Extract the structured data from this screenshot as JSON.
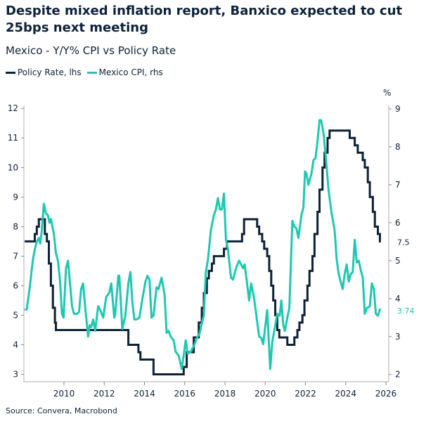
{
  "chart_data": {
    "type": "line",
    "title": "Despite mixed inflation report, Banxico expected to cut 25bps next meeting",
    "subtitle": "Mexico - Y/Y% CPI vs Policy Rate",
    "right_axis_unit": "%",
    "source": "Source: Convera, Macrobond",
    "legend_position": "top-left",
    "grid": false,
    "xlim": [
      2008.0,
      2026.0
    ],
    "x_ticks": [
      "2010",
      "2012",
      "2014",
      "2016",
      "2018",
      "2020",
      "2022",
      "2024",
      "2026"
    ],
    "left_axis": {
      "ylim": [
        2.75,
        12.1
      ],
      "ticks": [
        "3",
        "4",
        "5",
        "6",
        "7",
        "8",
        "9",
        "10",
        "11",
        "12"
      ]
    },
    "right_axis": {
      "ylim": [
        1.81,
        9.09
      ],
      "ticks": [
        "2",
        "3",
        "4",
        "5",
        "6",
        "7",
        "8",
        "9"
      ]
    },
    "series": [
      {
        "name": "Policy Rate, lhs",
        "axis": "left",
        "color": "#0d2137",
        "step": true,
        "last_value_label": "7.5",
        "points": [
          [
            2008.05,
            7.5
          ],
          [
            2008.55,
            7.75
          ],
          [
            2008.65,
            8.0
          ],
          [
            2008.75,
            8.25
          ],
          [
            2009.05,
            7.75
          ],
          [
            2009.15,
            7.5
          ],
          [
            2009.25,
            6.75
          ],
          [
            2009.35,
            6.0
          ],
          [
            2009.45,
            5.25
          ],
          [
            2009.55,
            4.75
          ],
          [
            2009.6,
            4.5
          ],
          [
            2013.2,
            4.0
          ],
          [
            2013.7,
            3.75
          ],
          [
            2013.8,
            3.5
          ],
          [
            2014.45,
            3.0
          ],
          [
            2015.95,
            3.25
          ],
          [
            2016.1,
            3.75
          ],
          [
            2016.45,
            4.25
          ],
          [
            2016.7,
            4.75
          ],
          [
            2016.85,
            5.25
          ],
          [
            2016.95,
            5.75
          ],
          [
            2017.1,
            6.25
          ],
          [
            2017.2,
            6.5
          ],
          [
            2017.35,
            6.75
          ],
          [
            2017.45,
            7.0
          ],
          [
            2017.95,
            7.25
          ],
          [
            2018.1,
            7.5
          ],
          [
            2018.85,
            7.75
          ],
          [
            2018.95,
            8.25
          ],
          [
            2019.6,
            8.0
          ],
          [
            2019.7,
            7.75
          ],
          [
            2019.85,
            7.5
          ],
          [
            2019.95,
            7.25
          ],
          [
            2020.1,
            7.0
          ],
          [
            2020.2,
            6.5
          ],
          [
            2020.3,
            6.0
          ],
          [
            2020.4,
            5.5
          ],
          [
            2020.5,
            5.0
          ],
          [
            2020.6,
            4.5
          ],
          [
            2020.7,
            4.25
          ],
          [
            2021.1,
            4.0
          ],
          [
            2021.45,
            4.25
          ],
          [
            2021.6,
            4.5
          ],
          [
            2021.7,
            4.75
          ],
          [
            2021.85,
            5.0
          ],
          [
            2021.95,
            5.5
          ],
          [
            2022.1,
            6.0
          ],
          [
            2022.2,
            6.5
          ],
          [
            2022.35,
            7.0
          ],
          [
            2022.45,
            7.75
          ],
          [
            2022.6,
            8.5
          ],
          [
            2022.7,
            9.25
          ],
          [
            2022.85,
            10.0
          ],
          [
            2022.95,
            10.5
          ],
          [
            2023.1,
            11.0
          ],
          [
            2023.2,
            11.25
          ],
          [
            2024.2,
            11.0
          ],
          [
            2024.45,
            10.75
          ],
          [
            2024.6,
            10.5
          ],
          [
            2024.85,
            10.25
          ],
          [
            2024.95,
            10.0
          ],
          [
            2025.1,
            9.5
          ],
          [
            2025.2,
            9.0
          ],
          [
            2025.35,
            8.5
          ],
          [
            2025.45,
            8.0
          ],
          [
            2025.6,
            7.75
          ],
          [
            2025.7,
            7.5
          ],
          [
            2025.75,
            7.5
          ]
        ]
      },
      {
        "name": "Mexico CPI, rhs",
        "axis": "right",
        "color": "#1ec8b0",
        "step": false,
        "last_value_label": "3.74",
        "points": [
          [
            2008.05,
            3.7
          ],
          [
            2008.15,
            3.72
          ],
          [
            2008.3,
            4.3
          ],
          [
            2008.45,
            5.0
          ],
          [
            2008.55,
            5.3
          ],
          [
            2008.65,
            5.5
          ],
          [
            2008.75,
            5.6
          ],
          [
            2008.82,
            5.45
          ],
          [
            2008.9,
            5.8
          ],
          [
            2009.0,
            6.5
          ],
          [
            2009.1,
            6.25
          ],
          [
            2009.2,
            6.2
          ],
          [
            2009.28,
            6.0
          ],
          [
            2009.35,
            6.1
          ],
          [
            2009.5,
            5.7
          ],
          [
            2009.6,
            5.2
          ],
          [
            2009.7,
            5.0
          ],
          [
            2009.8,
            4.5
          ],
          [
            2009.9,
            3.6
          ],
          [
            2009.98,
            3.5
          ],
          [
            2010.1,
            4.8
          ],
          [
            2010.2,
            5.0
          ],
          [
            2010.3,
            4.4
          ],
          [
            2010.4,
            3.8
          ],
          [
            2010.5,
            3.6
          ],
          [
            2010.65,
            3.6
          ],
          [
            2010.75,
            3.65
          ],
          [
            2010.85,
            4.25
          ],
          [
            2010.95,
            4.4
          ],
          [
            2011.05,
            3.8
          ],
          [
            2011.2,
            3.0
          ],
          [
            2011.28,
            3.3
          ],
          [
            2011.35,
            3.25
          ],
          [
            2011.45,
            3.45
          ],
          [
            2011.55,
            3.15
          ],
          [
            2011.7,
            3.8
          ],
          [
            2011.8,
            3.7
          ],
          [
            2011.95,
            3.5
          ],
          [
            2012.1,
            4.05
          ],
          [
            2012.25,
            4.15
          ],
          [
            2012.35,
            4.4
          ],
          [
            2012.5,
            3.5
          ],
          [
            2012.55,
            3.6
          ],
          [
            2012.7,
            4.6
          ],
          [
            2012.75,
            4.6
          ],
          [
            2012.9,
            3.2
          ],
          [
            2013.05,
            3.55
          ],
          [
            2013.2,
            4.4
          ],
          [
            2013.3,
            4.7
          ],
          [
            2013.4,
            3.9
          ],
          [
            2013.5,
            3.45
          ],
          [
            2013.6,
            3.45
          ],
          [
            2013.75,
            3.5
          ],
          [
            2013.9,
            4.0
          ],
          [
            2014.05,
            4.45
          ],
          [
            2014.15,
            4.6
          ],
          [
            2014.25,
            4.5
          ],
          [
            2014.35,
            3.5
          ],
          [
            2014.45,
            3.55
          ],
          [
            2014.6,
            4.3
          ],
          [
            2014.7,
            4.25
          ],
          [
            2014.85,
            4.55
          ],
          [
            2015.0,
            4.1
          ],
          [
            2015.1,
            3.1
          ],
          [
            2015.2,
            3.15
          ],
          [
            2015.3,
            3.0
          ],
          [
            2015.45,
            2.9
          ],
          [
            2015.55,
            2.6
          ],
          [
            2015.7,
            2.5
          ],
          [
            2015.85,
            2.15
          ],
          [
            2015.95,
            2.5
          ],
          [
            2016.05,
            2.9
          ],
          [
            2016.15,
            2.55
          ],
          [
            2016.3,
            2.6
          ],
          [
            2016.45,
            2.75
          ],
          [
            2016.6,
            2.95
          ],
          [
            2016.75,
            3.1
          ],
          [
            2016.85,
            3.35
          ],
          [
            2016.95,
            3.55
          ],
          [
            2017.05,
            4.7
          ],
          [
            2017.15,
            5.0
          ],
          [
            2017.3,
            5.8
          ],
          [
            2017.45,
            6.2
          ],
          [
            2017.55,
            6.35
          ],
          [
            2017.65,
            6.65
          ],
          [
            2017.75,
            6.35
          ],
          [
            2017.85,
            6.35
          ],
          [
            2017.95,
            6.77
          ],
          [
            2018.05,
            5.55
          ],
          [
            2018.15,
            5.3
          ],
          [
            2018.3,
            4.55
          ],
          [
            2018.4,
            4.5
          ],
          [
            2018.55,
            4.8
          ],
          [
            2018.7,
            5.0
          ],
          [
            2018.8,
            4.9
          ],
          [
            2018.9,
            4.8
          ],
          [
            2018.98,
            4.9
          ],
          [
            2019.1,
            4.4
          ],
          [
            2019.2,
            3.95
          ],
          [
            2019.3,
            4.4
          ],
          [
            2019.45,
            4.0
          ],
          [
            2019.6,
            3.4
          ],
          [
            2019.7,
            3.0
          ],
          [
            2019.8,
            2.97
          ],
          [
            2019.9,
            2.8
          ],
          [
            2020.0,
            3.25
          ],
          [
            2020.1,
            3.7
          ],
          [
            2020.25,
            2.15
          ],
          [
            2020.35,
            2.85
          ],
          [
            2020.5,
            3.3
          ],
          [
            2020.6,
            3.6
          ],
          [
            2020.72,
            3.55
          ],
          [
            2020.8,
            3.95
          ],
          [
            2020.9,
            3.3
          ],
          [
            2020.98,
            3.15
          ],
          [
            2021.1,
            3.5
          ],
          [
            2021.2,
            3.75
          ],
          [
            2021.35,
            6.05
          ],
          [
            2021.45,
            5.9
          ],
          [
            2021.55,
            5.85
          ],
          [
            2021.65,
            5.6
          ],
          [
            2021.8,
            6.2
          ],
          [
            2021.9,
            6.4
          ],
          [
            2021.98,
            7.35
          ],
          [
            2022.05,
            7.3
          ],
          [
            2022.15,
            7.0
          ],
          [
            2022.3,
            7.3
          ],
          [
            2022.4,
            7.65
          ],
          [
            2022.5,
            7.7
          ],
          [
            2022.6,
            8.15
          ],
          [
            2022.7,
            8.7
          ],
          [
            2022.78,
            8.7
          ],
          [
            2022.9,
            8.35
          ],
          [
            2023.0,
            7.8
          ],
          [
            2023.15,
            6.85
          ],
          [
            2023.3,
            6.25
          ],
          [
            2023.45,
            5.8
          ],
          [
            2023.55,
            5.05
          ],
          [
            2023.65,
            4.65
          ],
          [
            2023.75,
            4.45
          ],
          [
            2023.85,
            4.25
          ],
          [
            2023.95,
            4.65
          ],
          [
            2024.05,
            4.9
          ],
          [
            2024.15,
            4.45
          ],
          [
            2024.25,
            4.65
          ],
          [
            2024.35,
            4.7
          ],
          [
            2024.45,
            5.55
          ],
          [
            2024.55,
            4.95
          ],
          [
            2024.65,
            5.0
          ],
          [
            2024.75,
            4.75
          ],
          [
            2024.85,
            4.55
          ],
          [
            2024.95,
            3.6
          ],
          [
            2025.05,
            3.75
          ],
          [
            2025.2,
            3.8
          ],
          [
            2025.3,
            4.4
          ],
          [
            2025.4,
            4.25
          ],
          [
            2025.5,
            3.6
          ],
          [
            2025.6,
            3.55
          ],
          [
            2025.72,
            3.74
          ]
        ]
      }
    ]
  }
}
